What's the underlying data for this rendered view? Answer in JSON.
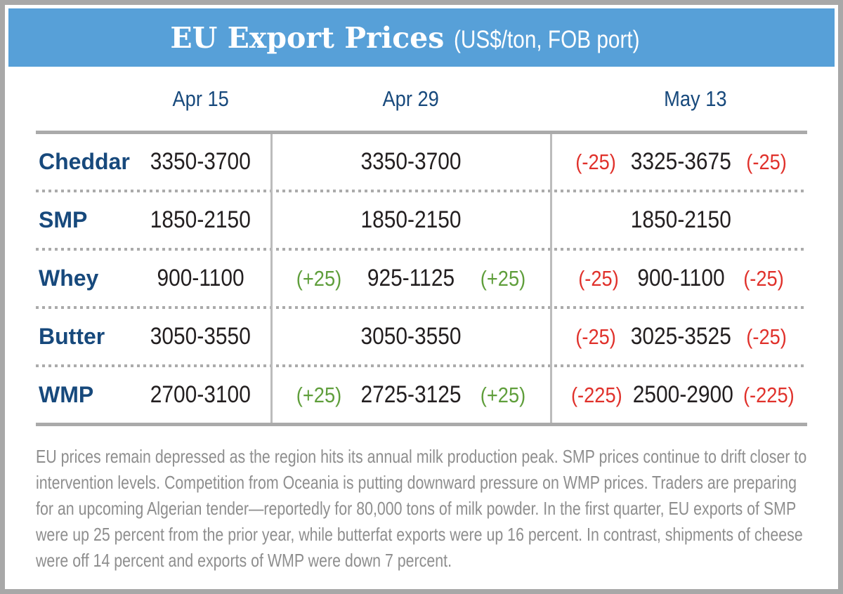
{
  "header": {
    "title": "EU Export Prices",
    "subtitle": "(US$/ton, FOB port)"
  },
  "columns": {
    "apr15": "Apr 15",
    "apr29": "Apr 29",
    "may13": "May 13"
  },
  "rows": [
    {
      "product": "Cheddar",
      "apr15": {
        "value": "3350-3700"
      },
      "apr29": {
        "value": "3350-3700",
        "change": "",
        "direction": ""
      },
      "may13": {
        "value": "3325-3675",
        "change": "(-25)",
        "direction": "down"
      }
    },
    {
      "product": "SMP",
      "apr15": {
        "value": "1850-2150"
      },
      "apr29": {
        "value": "1850-2150",
        "change": "",
        "direction": ""
      },
      "may13": {
        "value": "1850-2150",
        "change": "",
        "direction": ""
      }
    },
    {
      "product": "Whey",
      "apr15": {
        "value": "900-1100"
      },
      "apr29": {
        "value": "925-1125",
        "change": "(+25)",
        "direction": "up"
      },
      "may13": {
        "value": "900-1100",
        "change": "(-25)",
        "direction": "down"
      }
    },
    {
      "product": "Butter",
      "apr15": {
        "value": "3050-3550"
      },
      "apr29": {
        "value": "3050-3550",
        "change": "",
        "direction": ""
      },
      "may13": {
        "value": "3025-3525",
        "change": "(-25)",
        "direction": "down"
      }
    },
    {
      "product": "WMP",
      "apr15": {
        "value": "2700-3100"
      },
      "apr29": {
        "value": "2725-3125",
        "change": "(+25)",
        "direction": "up"
      },
      "may13": {
        "value": "2500-2900",
        "change": "(-225)",
        "direction": "down"
      }
    }
  ],
  "footnote": "EU prices remain depressed as the region hits its annual milk production peak. SMP prices continue to drift closer to intervention levels. Competition from Oceania is putting downward pressure on WMP prices. Traders are preparing for an upcoming Algerian tender—reportedly for 80,000 tons of milk powder. In the first quarter, EU exports of SMP were up 25 percent from the prior year, while butterfat exports were up 16 percent. In contrast, shipments of cheese were off 14 percent and exports of WMP were down 7 percent.",
  "colors": {
    "header_bg": "#57a0d8",
    "navy": "#17497c",
    "positive": "#5f9e3b",
    "negative": "#e0312b",
    "value_text": "#231f20",
    "footnote_text": "#8e8e8e",
    "rule": "#aaaaaa"
  }
}
